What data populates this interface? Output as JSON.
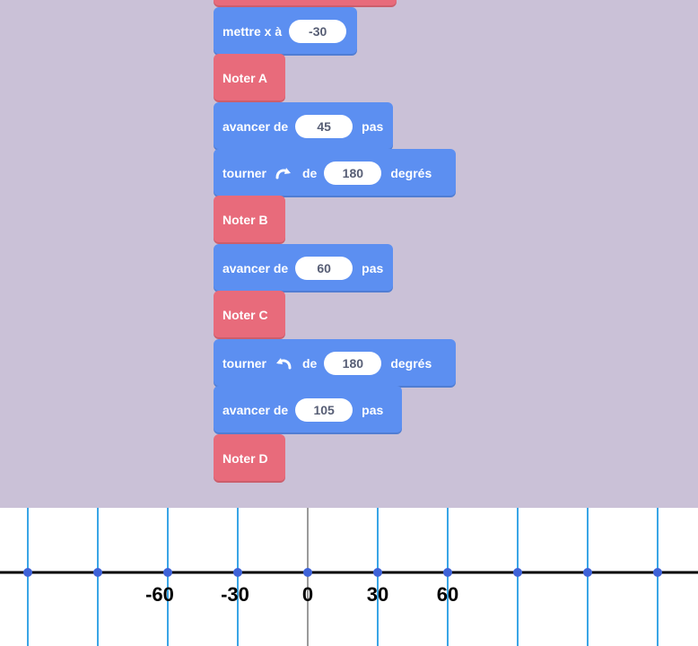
{
  "blocks": {
    "set_x": {
      "label": "mettre x à",
      "value": "-30"
    },
    "note_a": {
      "label": "Noter A"
    },
    "move_45": {
      "label": "avancer de",
      "value": "45",
      "unit": "pas"
    },
    "turn_right": {
      "label": "tourner",
      "word_de": "de",
      "value": "180",
      "unit": "degrés",
      "icon": "rotate-clockwise-icon"
    },
    "note_b": {
      "label": "Noter B"
    },
    "move_60": {
      "label": "avancer de",
      "value": "60",
      "unit": "pas"
    },
    "note_c": {
      "label": "Noter C"
    },
    "turn_left": {
      "label": "tourner",
      "word_de": "de",
      "value": "180",
      "unit": "degrés",
      "icon": "rotate-counterclockwise-icon"
    },
    "move_105": {
      "label": "avancer de",
      "value": "105",
      "unit": "pas"
    },
    "note_d": {
      "label": "Noter D"
    }
  },
  "number_line": {
    "tick_labels": [
      "-60",
      "-30",
      "0",
      "30",
      "60"
    ],
    "colors": {
      "axis": "#000000",
      "ticks": "#3aa5e6",
      "zero_line": "#9a9a9a",
      "dots": "#3f63d8"
    }
  },
  "colors": {
    "background": "#cac1d7",
    "motion_block": "#5c8ff1",
    "event_block": "#e86b7b"
  }
}
